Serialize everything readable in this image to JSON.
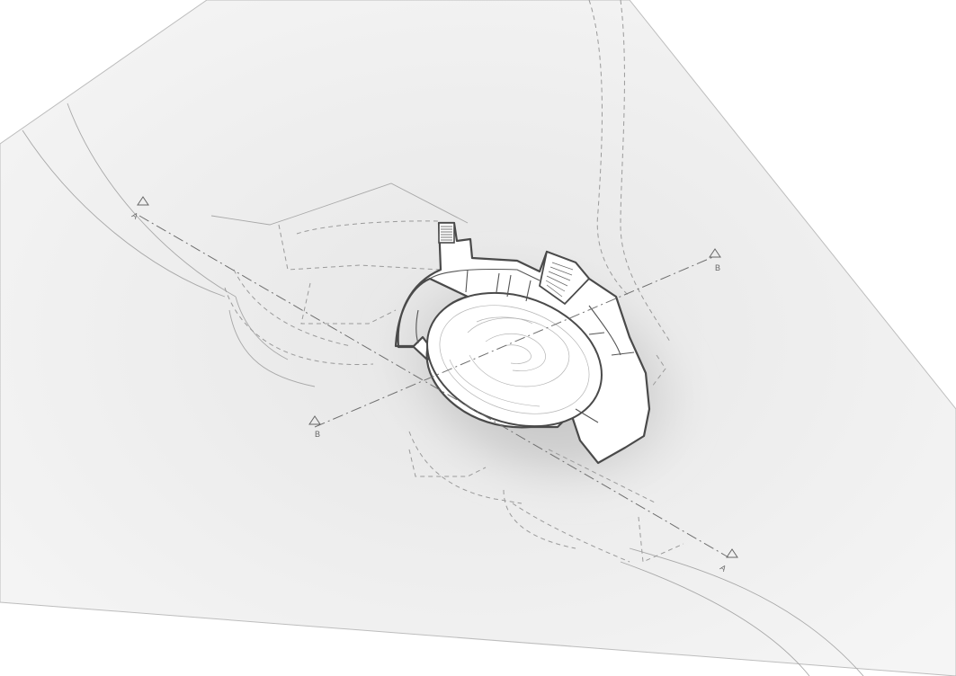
{
  "section_markers": {
    "a_start": "A",
    "a_end": "A",
    "b_start": "B",
    "b_end": "B"
  },
  "colors": {
    "background": "#ffffff",
    "site_fill": "#eeeeee",
    "shadow": "#c9c9c9",
    "wall": "#4a4a4a",
    "line": "#9a9a9a"
  },
  "icons": {
    "section_marker": "triangle-marker-icon",
    "north_stair": "stair-icon",
    "east_stair": "stair-icon"
  }
}
